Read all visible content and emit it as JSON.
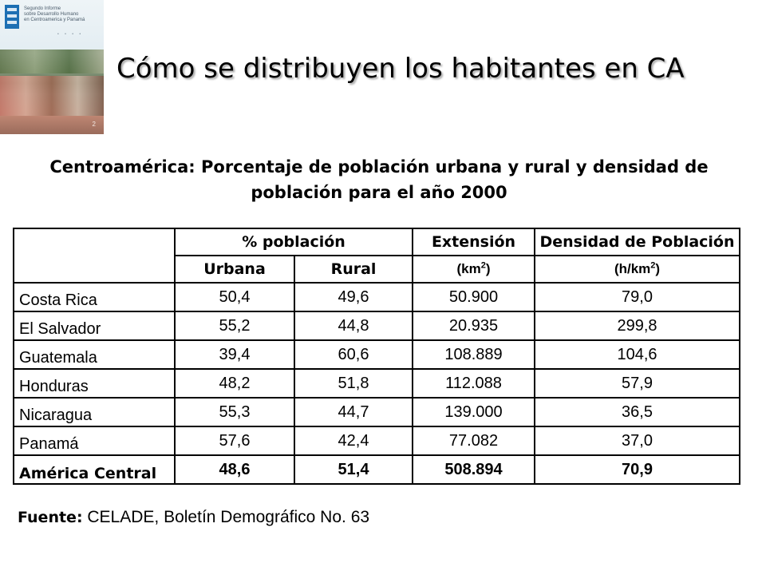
{
  "cover": {
    "text_lines": [
      "Segundo Informe",
      "sobre Desarrollo Humano",
      "en Centroamerica y Panamá"
    ],
    "page_number": "2"
  },
  "slide_title": "Cómo se distribuyen los habitantes en CA",
  "table_title_line1": "Centroamérica: Porcentaje de población urbana y rural y densidad de",
  "table_title_line2": "población para el año 2000",
  "table": {
    "header_group": "% población",
    "header_extension": "Extensión",
    "header_density": "Densidad de Población",
    "sub_urban": "Urbana",
    "sub_rural": "Rural",
    "sub_ext_unit_base": "(km",
    "sub_ext_unit_sup": "2",
    "sub_ext_unit_end": ")",
    "sub_den_unit_base": "(h/km",
    "sub_den_unit_sup": "2",
    "sub_den_unit_end": ")",
    "rows": [
      {
        "country": "Costa Rica",
        "urbana": "50,4",
        "rural": "49,6",
        "extension": "50.900",
        "densidad": "79,0"
      },
      {
        "country": "El Salvador",
        "urbana": "55,2",
        "rural": "44,8",
        "extension": "20.935",
        "densidad": "299,8"
      },
      {
        "country": "Guatemala",
        "urbana": "39,4",
        "rural": "60,6",
        "extension": "108.889",
        "densidad": "104,6"
      },
      {
        "country": "Honduras",
        "urbana": "48,2",
        "rural": "51,8",
        "extension": "112.088",
        "densidad": "57,9"
      },
      {
        "country": "Nicaragua",
        "urbana": "55,3",
        "rural": "44,7",
        "extension": "139.000",
        "densidad": "36,5"
      },
      {
        "country": "Panamá",
        "urbana": "57,6",
        "rural": "42,4",
        "extension": "77.082",
        "densidad": "37,0"
      }
    ],
    "total": {
      "country": "América Central",
      "urbana": "48,6",
      "rural": "51,4",
      "extension": "508.894",
      "densidad": "70,9"
    }
  },
  "source": {
    "label": "Fuente:",
    "text": " CELADE, Boletín Demográfico No. 63"
  }
}
